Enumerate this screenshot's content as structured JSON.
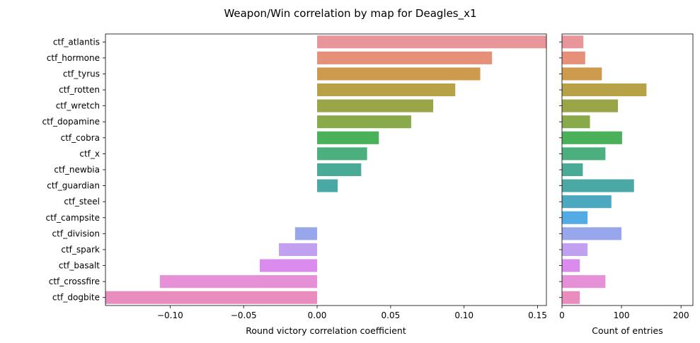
{
  "title": "Weapon/Win correlation by map for Deagles_x1",
  "chart_data": [
    {
      "type": "bar",
      "orientation": "horizontal",
      "categories": [
        "ctf_atlantis",
        "ctf_hormone",
        "ctf_tyrus",
        "ctf_rotten",
        "ctf_wretch",
        "ctf_dopamine",
        "ctf_cobra",
        "ctf_x",
        "ctf_newbia",
        "ctf_guardian",
        "ctf_steel",
        "ctf_campsite",
        "ctf_division",
        "ctf_spark",
        "ctf_basalt",
        "ctf_crossfire",
        "ctf_dogbite"
      ],
      "values": [
        0.156,
        0.119,
        0.111,
        0.094,
        0.079,
        0.064,
        0.042,
        0.034,
        0.03,
        0.014,
        0.0,
        0.0,
        -0.015,
        -0.026,
        -0.039,
        -0.107,
        -0.144
      ],
      "colors": [
        "#e8969a",
        "#e79079",
        "#cd9a4e",
        "#b7a247",
        "#9aa548",
        "#88aa4a",
        "#4bb05a",
        "#4bb07e",
        "#49ab96",
        "#4aa8a5",
        "#4ba8bf",
        "#53abe3",
        "#98a7ec",
        "#c1a1ef",
        "#d98bee",
        "#e690d7",
        "#e98dbf"
      ],
      "xlabel": "Round victory correlation coefficient",
      "ylabel": "",
      "xlim": [
        -0.144,
        0.156
      ],
      "xticks": [
        -0.1,
        -0.05,
        0.0,
        0.05,
        0.1,
        0.15
      ],
      "xtick_labels": [
        "−0.10",
        "−0.05",
        "0.00",
        "0.05",
        "0.10",
        "0.15"
      ]
    },
    {
      "type": "bar",
      "orientation": "horizontal",
      "categories": [
        "ctf_atlantis",
        "ctf_hormone",
        "ctf_tyrus",
        "ctf_rotten",
        "ctf_wretch",
        "ctf_dopamine",
        "ctf_cobra",
        "ctf_x",
        "ctf_newbia",
        "ctf_guardian",
        "ctf_steel",
        "ctf_campsite",
        "ctf_division",
        "ctf_spark",
        "ctf_basalt",
        "ctf_crossfire",
        "ctf_dogbite"
      ],
      "values": [
        36,
        39,
        67,
        142,
        94,
        47,
        101,
        73,
        35,
        121,
        83,
        43,
        100,
        43,
        30,
        73,
        30
      ],
      "colors": [
        "#e8969a",
        "#e79079",
        "#cd9a4e",
        "#b7a247",
        "#9aa548",
        "#88aa4a",
        "#4bb05a",
        "#4bb07e",
        "#49ab96",
        "#4aa8a5",
        "#4ba8bf",
        "#53abe3",
        "#98a7ec",
        "#c1a1ef",
        "#d98bee",
        "#e690d7",
        "#e98dbf"
      ],
      "xlabel": "Count of entries",
      "ylabel": "",
      "xlim": [
        0,
        220
      ],
      "xticks": [
        0,
        100,
        200
      ],
      "xtick_labels": [
        "0",
        "100",
        "200"
      ]
    }
  ]
}
